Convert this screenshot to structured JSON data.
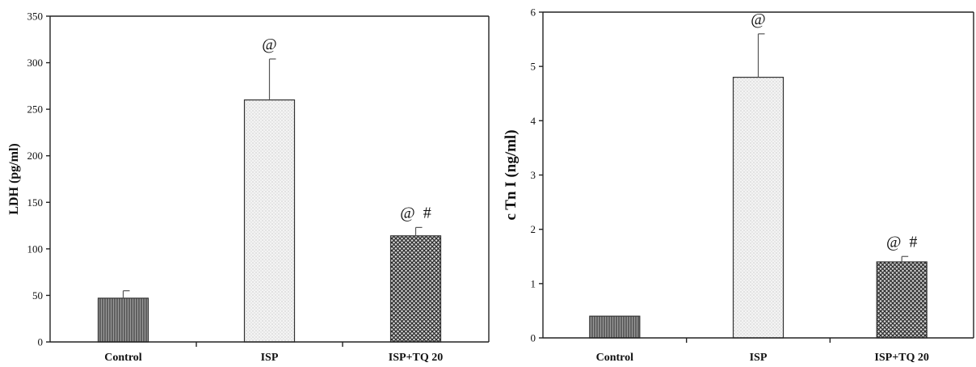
{
  "chart_data": [
    {
      "type": "bar",
      "title": "",
      "xlabel": "",
      "ylabel": "LDH (pg/ml)",
      "ylim": [
        0,
        350
      ],
      "yticks": [
        0,
        50,
        100,
        150,
        200,
        250,
        300,
        350
      ],
      "grid": false,
      "categories": [
        "Control",
        "ISP",
        "ISP+TQ 20"
      ],
      "values": [
        47,
        260,
        114
      ],
      "error_upper": [
        8,
        44,
        9
      ],
      "annotations": [
        "",
        "@",
        "@  #"
      ],
      "patterns": [
        "vertical-lines",
        "light-dots",
        "crosshatch"
      ]
    },
    {
      "type": "bar",
      "title": "",
      "xlabel": "",
      "ylabel": "c Tn I (ng/ml)",
      "ylim": [
        0,
        6
      ],
      "yticks": [
        0,
        1,
        2,
        3,
        4,
        5,
        6
      ],
      "grid": false,
      "categories": [
        "Control",
        "ISP",
        "ISP+TQ 20"
      ],
      "values": [
        0.4,
        4.8,
        1.4
      ],
      "error_upper": [
        0,
        0.8,
        0.1
      ],
      "annotations": [
        "",
        "@",
        "@  #"
      ],
      "patterns": [
        "vertical-lines",
        "light-dots",
        "crosshatch"
      ]
    }
  ]
}
